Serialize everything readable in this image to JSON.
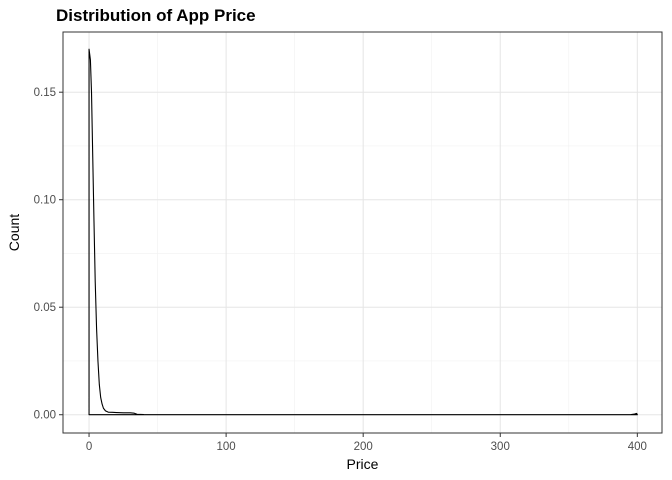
{
  "chart_data": {
    "type": "line",
    "title": "Distribution of App Price",
    "xlabel": "Price",
    "ylabel": "Count",
    "xlim": [
      -19,
      418
    ],
    "ylim": [
      -0.0085,
      0.178
    ],
    "x_ticks": [
      0,
      100,
      200,
      300,
      400
    ],
    "y_ticks": [
      0.0,
      0.05,
      0.1,
      0.15
    ],
    "x_tick_labels": [
      "0",
      "100",
      "200",
      "300",
      "400"
    ],
    "y_tick_labels": [
      "0.00",
      "0.05",
      "0.10",
      "0.15"
    ],
    "grid": true,
    "series": [
      {
        "color": "#000000",
        "x": [
          0,
          0.4,
          1,
          1.8,
          2.7,
          3.6,
          4.5,
          5.5,
          6.5,
          7.5,
          8.5,
          9.5,
          10.5,
          12,
          14,
          17,
          20,
          25,
          30,
          33,
          35,
          40,
          60,
          100,
          200,
          300,
          395,
          398,
          399.5,
          400
        ],
        "y": [
          0.17,
          0.168,
          0.165,
          0.15,
          0.12,
          0.09,
          0.062,
          0.04,
          0.025,
          0.014,
          0.008,
          0.005,
          0.003,
          0.0018,
          0.0012,
          0.0011,
          0.001,
          0.0009,
          0.0009,
          0.0007,
          0.0002,
          0.0001,
          5e-05,
          2e-05,
          1e-05,
          1e-05,
          5e-05,
          0.0003,
          0.0006,
          0.0
        ]
      }
    ]
  }
}
